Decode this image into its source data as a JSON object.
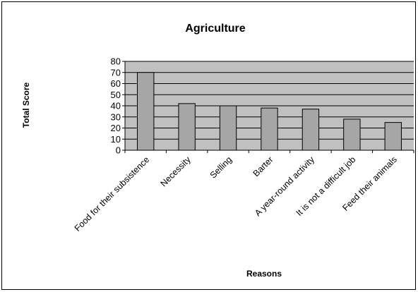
{
  "chart_data": {
    "type": "bar",
    "title": "Agriculture",
    "xlabel": "Reasons",
    "ylabel": "Total Score",
    "categories": [
      "Food for their subsistence",
      "Necessity",
      "Selling",
      "Barter",
      "A year-round activity",
      "It is not a difficult job",
      "Feed their animals"
    ],
    "values": [
      70,
      42,
      40,
      38,
      37,
      28,
      25
    ],
    "ylim": [
      0,
      80
    ],
    "yticks": [
      0,
      10,
      20,
      30,
      40,
      50,
      60,
      70,
      80
    ],
    "grid": true,
    "legend": "none",
    "colors": {
      "plot_background": "#c0c0c0",
      "bar_fill": "#a6a6a6",
      "bar_stroke": "#000000",
      "gridline": "#000000"
    }
  }
}
